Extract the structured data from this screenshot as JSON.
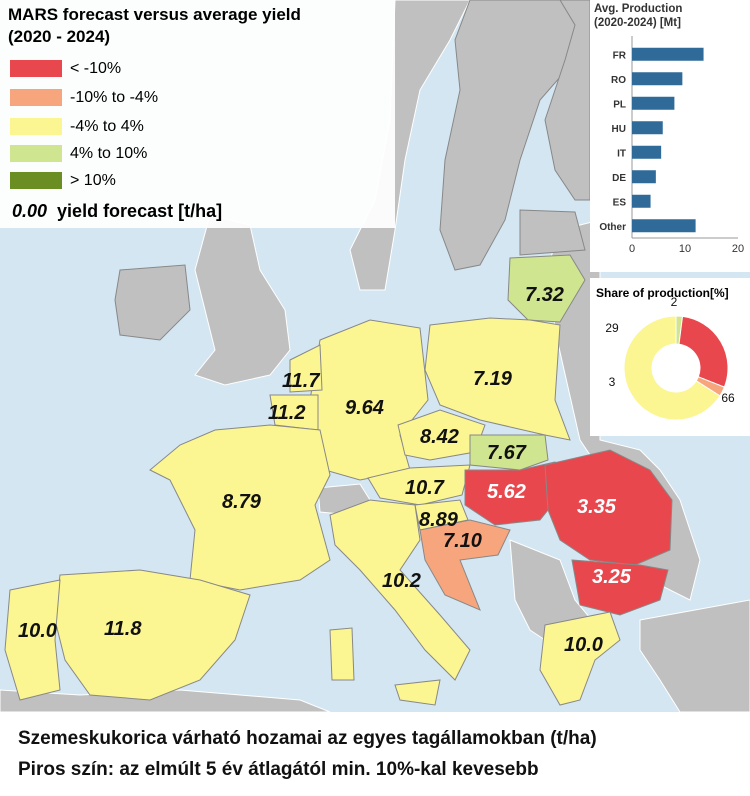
{
  "colors": {
    "sea": "#d3e6f2",
    "non_eu": "#c0c0c0",
    "red": "#e8474d",
    "salmon": "#f7a57d",
    "yellow": "#fbf592",
    "lightgreen": "#cfe58f",
    "darkgreen": "#6b8e23",
    "bar": "#2f6a99",
    "donut_gray": "#cccccc"
  },
  "legend": {
    "title_line1": "MARS forecast versus average yield",
    "title_line2": "(2020 - 2024)",
    "classes": [
      {
        "label": "< -10%",
        "color": "#e8474d"
      },
      {
        "label": "-10% to -4%",
        "color": "#f7a57d"
      },
      {
        "label": "-4% to 4%",
        "color": "#fbf592"
      },
      {
        "label": "4% to 10%",
        "color": "#cfe58f"
      },
      {
        "label": "> 10%",
        "color": "#6b8e23"
      }
    ],
    "yield_sample": "0.00",
    "yield_label": "yield forecast [t/ha]"
  },
  "production_chart": {
    "title_line1": "Avg. Production",
    "title_line2": "(2020-2024) [Mt]",
    "chart_data": {
      "type": "bar",
      "orientation": "horizontal",
      "categories": [
        "FR",
        "RO",
        "PL",
        "HU",
        "IT",
        "DE",
        "ES",
        "Other"
      ],
      "values": [
        13.5,
        9.5,
        8.0,
        5.8,
        5.5,
        4.5,
        3.5,
        12.0
      ],
      "xlim": [
        0,
        20
      ],
      "xticks": [
        "0",
        "10",
        "20"
      ],
      "color": "#2f6a99"
    }
  },
  "share_chart": {
    "title": "Share of production[%]",
    "chart_data": {
      "type": "pie",
      "variant": "donut",
      "values": [
        2,
        29,
        3,
        66
      ],
      "labels": [
        "2",
        "29",
        "3",
        "66"
      ],
      "colors": [
        "#cfe58f",
        "#e8474d",
        "#f7a57d",
        "#fbf592"
      ]
    }
  },
  "map_values": [
    {
      "id": "lithuania",
      "text": "7.32",
      "white": false
    },
    {
      "id": "poland",
      "text": "7.19",
      "white": false
    },
    {
      "id": "netherlands",
      "text": "11.7",
      "white": false
    },
    {
      "id": "belgium",
      "text": "11.2",
      "white": false
    },
    {
      "id": "germany",
      "text": "9.64",
      "white": false
    },
    {
      "id": "czechia",
      "text": "8.42",
      "white": false
    },
    {
      "id": "slovakia",
      "text": "7.67",
      "white": false
    },
    {
      "id": "austria",
      "text": "10.7",
      "white": false
    },
    {
      "id": "hungary",
      "text": "5.62",
      "white": true
    },
    {
      "id": "romania",
      "text": "3.35",
      "white": true
    },
    {
      "id": "slovenia",
      "text": "8.89",
      "white": false
    },
    {
      "id": "croatia",
      "text": "7.10",
      "white": false
    },
    {
      "id": "bulgaria",
      "text": "3.25",
      "white": true
    },
    {
      "id": "france",
      "text": "8.79",
      "white": false
    },
    {
      "id": "italy",
      "text": "10.2",
      "white": false
    },
    {
      "id": "portugal",
      "text": "10.0",
      "white": false
    },
    {
      "id": "spain",
      "text": "11.8",
      "white": false
    },
    {
      "id": "greece",
      "text": "10.0",
      "white": false
    }
  ],
  "caption": {
    "line1": "Szemeskukorica várható hozamai az egyes tagállamokban (t/ha)",
    "line2": "Piros szín: az elmúlt 5 év átlagától min. 10%-kal kevesebb"
  }
}
